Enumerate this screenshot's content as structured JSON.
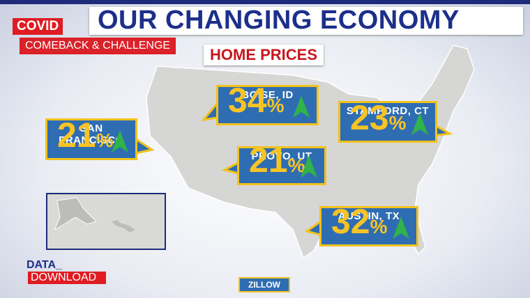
{
  "header": {
    "badge": "COVID",
    "series_title": "COMEBACK & CHALLENGE",
    "title": "OUR CHANGING ECONOMY",
    "subtitle": "HOME PRICES"
  },
  "callouts": [
    {
      "city": "BOISE, ID",
      "value": "34",
      "unit": "%"
    },
    {
      "city": "STAMFORD, CT",
      "value": "23",
      "unit": "%"
    },
    {
      "city": "SAN FRANCISCO",
      "value": "21",
      "unit": "%"
    },
    {
      "city": "PROVO, UT",
      "value": "21",
      "unit": "%"
    },
    {
      "city": "AUSTIN, TX",
      "value": "32",
      "unit": "%"
    }
  ],
  "footer": {
    "brand_top": "DATA_",
    "brand_bottom": "DOWNLOAD",
    "source": "ZILLOW"
  }
}
